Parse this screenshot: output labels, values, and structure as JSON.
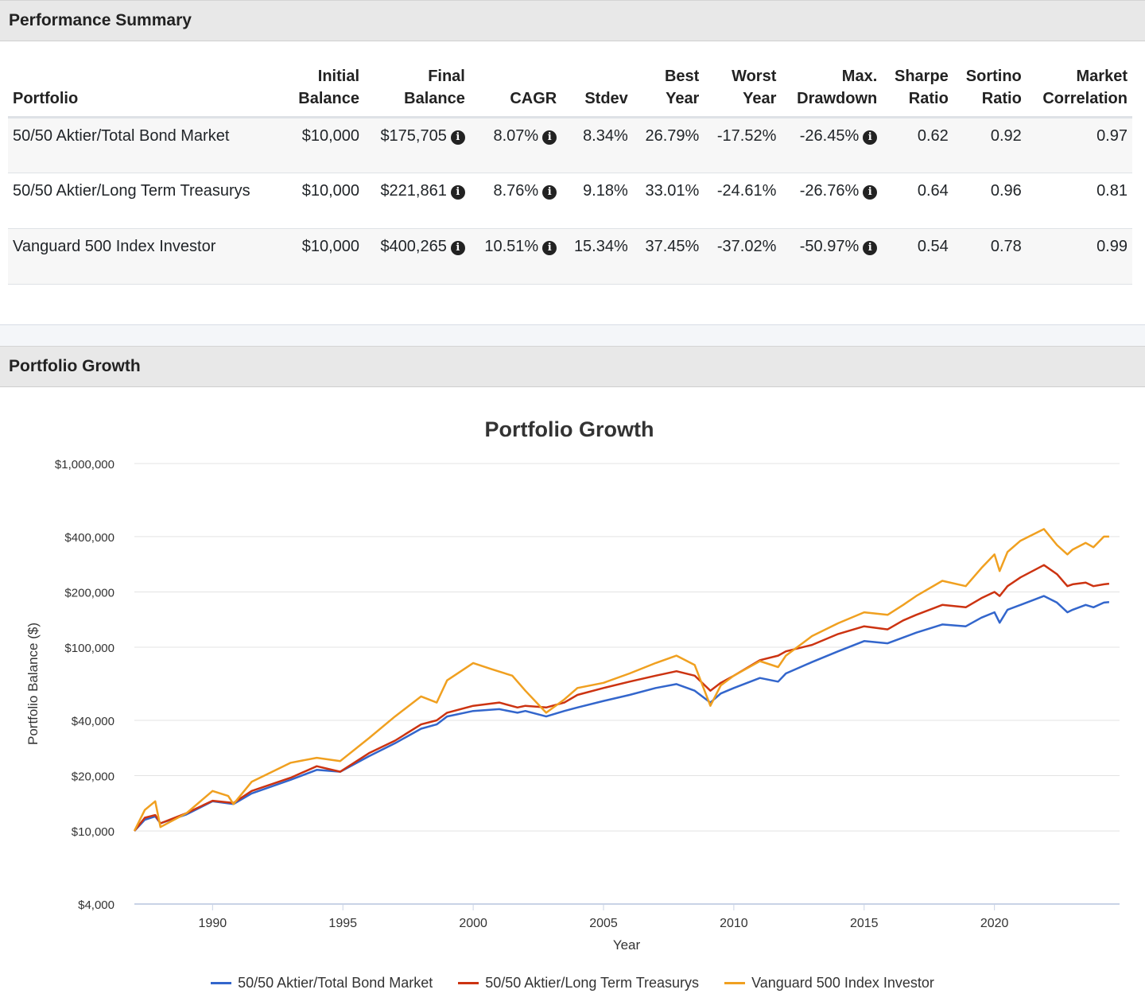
{
  "summary": {
    "title": "Performance Summary",
    "columns": [
      {
        "l1": "",
        "l2": "Portfolio"
      },
      {
        "l1": "Initial",
        "l2": "Balance"
      },
      {
        "l1": "Final",
        "l2": "Balance"
      },
      {
        "l1": "",
        "l2": "CAGR"
      },
      {
        "l1": "",
        "l2": "Stdev"
      },
      {
        "l1": "Best",
        "l2": "Year"
      },
      {
        "l1": "Worst",
        "l2": "Year"
      },
      {
        "l1": "Max.",
        "l2": "Drawdown"
      },
      {
        "l1": "Sharpe",
        "l2": "Ratio"
      },
      {
        "l1": "Sortino",
        "l2": "Ratio"
      },
      {
        "l1": "Market",
        "l2": "Correlation"
      }
    ],
    "rows": [
      {
        "portfolio": "50/50 Aktier/Total Bond Market",
        "initial": "$10,000",
        "final": "$175,705",
        "cagr": "8.07%",
        "stdev": "8.34%",
        "best": "26.79%",
        "worst": "-17.52%",
        "drawdown": "-26.45%",
        "sharpe": "0.62",
        "sortino": "0.92",
        "correlation": "0.97"
      },
      {
        "portfolio": "50/50 Aktier/Long Term Treasurys",
        "initial": "$10,000",
        "final": "$221,861",
        "cagr": "8.76%",
        "stdev": "9.18%",
        "best": "33.01%",
        "worst": "-24.61%",
        "drawdown": "-26.76%",
        "sharpe": "0.64",
        "sortino": "0.96",
        "correlation": "0.81"
      },
      {
        "portfolio": "Vanguard 500 Index Investor",
        "initial": "$10,000",
        "final": "$400,265",
        "cagr": "10.51%",
        "stdev": "15.34%",
        "best": "37.45%",
        "worst": "-37.02%",
        "drawdown": "-50.97%",
        "sharpe": "0.54",
        "sortino": "0.78",
        "correlation": "0.99"
      }
    ],
    "info_icon": "info-circle-icon",
    "info_glyph": "i"
  },
  "growth": {
    "panel_title": "Portfolio Growth"
  },
  "chart_data": {
    "type": "line",
    "title": "Portfolio Growth",
    "xlabel": "Year",
    "ylabel": "Portfolio Balance ($)",
    "y_scale": "log",
    "ylim": [
      4000,
      1000000
    ],
    "xlim": [
      1987.0,
      2024.8
    ],
    "y_ticks": [
      4000,
      10000,
      20000,
      40000,
      100000,
      200000,
      400000,
      1000000
    ],
    "y_tick_labels": [
      "$4,000",
      "$10,000",
      "$20,000",
      "$40,000",
      "$100,000",
      "$200,000",
      "$400,000",
      "$1,000,000"
    ],
    "x_ticks": [
      1990,
      1995,
      2000,
      2005,
      2010,
      2015,
      2020
    ],
    "grid": true,
    "legend_position": "bottom",
    "series": [
      {
        "name": "50/50 Aktier/Total Bond Market",
        "color": "#3366cc",
        "x": [
          1987.0,
          1987.4,
          1987.8,
          1988.0,
          1989.0,
          1990.0,
          1990.8,
          1991.5,
          1993.0,
          1994.0,
          1994.9,
          1996.0,
          1997.0,
          1998.0,
          1998.6,
          1999.0,
          2000.0,
          2001.0,
          2001.7,
          2002.0,
          2002.8,
          2003.5,
          2004.0,
          2005.0,
          2006.0,
          2007.0,
          2007.8,
          2008.5,
          2009.1,
          2009.5,
          2010.0,
          2011.0,
          2011.7,
          2012.0,
          2013.0,
          2014.0,
          2015.0,
          2015.9,
          2016.5,
          2017.0,
          2018.0,
          2018.9,
          2019.5,
          2020.0,
          2020.2,
          2020.5,
          2021.0,
          2021.9,
          2022.4,
          2022.8,
          2023.0,
          2023.5,
          2023.8,
          2024.2,
          2024.4
        ],
        "values": [
          10000,
          11500,
          12000,
          11000,
          12300,
          14500,
          14000,
          16000,
          19000,
          21500,
          21000,
          25500,
          30000,
          36000,
          38000,
          42000,
          45000,
          46000,
          44000,
          45000,
          42000,
          45000,
          47000,
          51000,
          55000,
          60000,
          63000,
          58000,
          50000,
          56000,
          60000,
          68000,
          65000,
          72000,
          83000,
          95000,
          108000,
          105000,
          113000,
          120000,
          133000,
          130000,
          145000,
          155000,
          136000,
          160000,
          170000,
          190000,
          175000,
          155000,
          160000,
          170000,
          165000,
          175000,
          176000
        ]
      },
      {
        "name": "50/50 Aktier/Long Term Treasurys",
        "color": "#cc3311",
        "x": [
          1987.0,
          1987.4,
          1987.8,
          1988.0,
          1989.0,
          1990.0,
          1990.8,
          1991.5,
          1993.0,
          1994.0,
          1994.9,
          1996.0,
          1997.0,
          1998.0,
          1998.6,
          1999.0,
          2000.0,
          2001.0,
          2001.7,
          2002.0,
          2002.8,
          2003.5,
          2004.0,
          2005.0,
          2006.0,
          2007.0,
          2007.8,
          2008.5,
          2009.1,
          2009.5,
          2010.0,
          2011.0,
          2011.7,
          2012.0,
          2013.0,
          2014.0,
          2015.0,
          2015.9,
          2016.5,
          2017.0,
          2018.0,
          2018.9,
          2019.5,
          2020.0,
          2020.2,
          2020.5,
          2021.0,
          2021.9,
          2022.4,
          2022.8,
          2023.0,
          2023.5,
          2023.8,
          2024.2,
          2024.4
        ],
        "values": [
          10000,
          11800,
          12200,
          11000,
          12500,
          14600,
          14200,
          16500,
          19500,
          22500,
          21000,
          26500,
          31000,
          38000,
          40000,
          44000,
          48000,
          50000,
          47000,
          48000,
          47000,
          50000,
          55000,
          60000,
          65000,
          70000,
          74000,
          70000,
          58000,
          64000,
          70000,
          85000,
          90000,
          95000,
          103000,
          118000,
          130000,
          125000,
          140000,
          150000,
          170000,
          165000,
          185000,
          200000,
          190000,
          215000,
          240000,
          280000,
          250000,
          215000,
          220000,
          225000,
          215000,
          220000,
          221861
        ]
      },
      {
        "name": "Vanguard 500 Index Investor",
        "color": "#f0a020",
        "x": [
          1987.0,
          1987.4,
          1987.8,
          1988.0,
          1989.0,
          1990.0,
          1990.6,
          1990.8,
          1991.5,
          1993.0,
          1994.0,
          1994.9,
          1996.0,
          1997.0,
          1998.0,
          1998.6,
          1999.0,
          2000.0,
          2000.7,
          2001.5,
          2002.0,
          2002.8,
          2003.5,
          2004.0,
          2005.0,
          2006.0,
          2007.0,
          2007.8,
          2008.5,
          2009.1,
          2009.5,
          2010.0,
          2011.0,
          2011.7,
          2012.0,
          2013.0,
          2014.0,
          2015.0,
          2015.9,
          2016.5,
          2017.0,
          2018.0,
          2018.9,
          2019.5,
          2020.0,
          2020.2,
          2020.5,
          2021.0,
          2021.9,
          2022.4,
          2022.8,
          2023.0,
          2023.5,
          2023.8,
          2024.2,
          2024.4
        ],
        "values": [
          10000,
          13000,
          14500,
          10500,
          12500,
          16500,
          15500,
          14000,
          18500,
          23500,
          25000,
          24000,
          32000,
          42000,
          54000,
          50000,
          66000,
          82000,
          76000,
          70000,
          58000,
          44000,
          52000,
          60000,
          64000,
          72000,
          82000,
          90000,
          80000,
          48000,
          62000,
          70000,
          84000,
          78000,
          90000,
          115000,
          135000,
          155000,
          150000,
          170000,
          190000,
          230000,
          215000,
          270000,
          320000,
          260000,
          330000,
          380000,
          440000,
          360000,
          320000,
          340000,
          370000,
          350000,
          400000,
          400265
        ]
      }
    ]
  }
}
